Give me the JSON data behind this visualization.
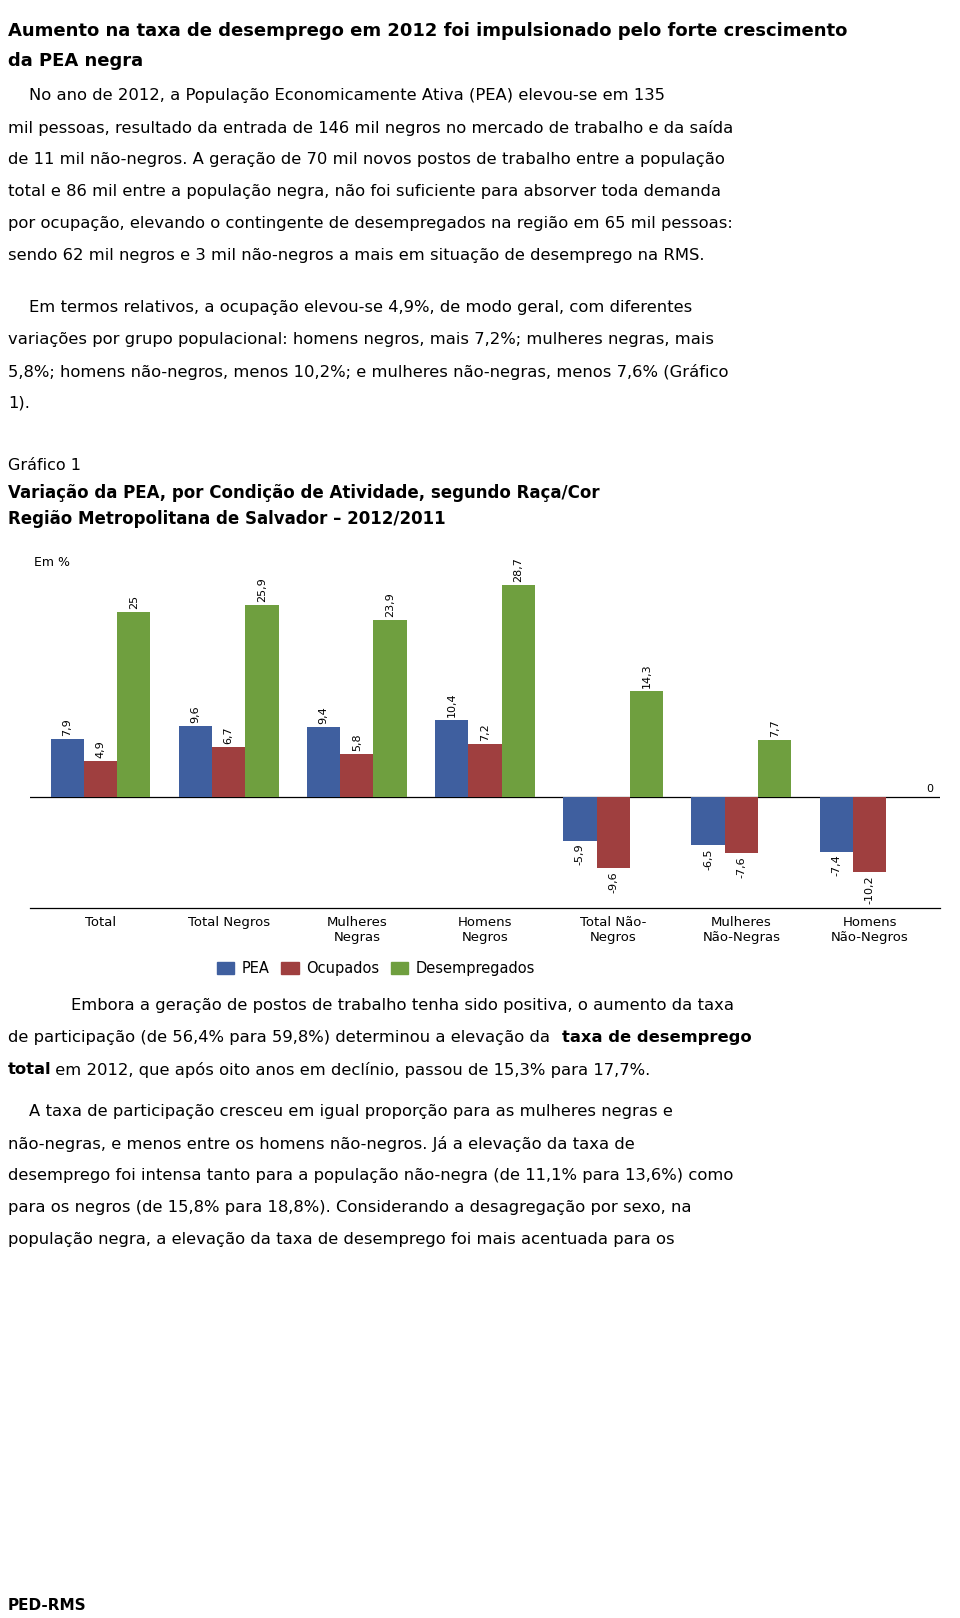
{
  "paragraph1": "No ano de 2012, a População Economicamente Ativa (PEA) elevou-se em 135 mil pessoas, resultado da entrada de 146 mil negros no mercado de trabalho e da saída de 11 mil não-negros. A geração de 70 mil novos postos de trabalho entre a população total e 86 mil entre a população negra, não foi suficiente para absorver toda demanda por ocupação, elevando o contingente de desempregados na região em 65 mil pessoas: sendo 62 mil negros e 3 mil não-negros a mais em situação de desemprego na RMS.",
  "paragraph2": "Em termos relativos, a ocupação elevou-se 4,9%, de modo geral, com diferentes variações por grupo populacional: homens negros, mais 7,2%; mulheres negras, mais 5,8%; homens não-negros, menos 10,2%; e mulheres não-negras, menos 7,6% (Gráfico 1).",
  "graph_label": "Gráfico 1",
  "graph_title_line1": "Variação da PEA, por Condição de Atividade, segundo Raça/Cor",
  "graph_title_line2": "Região Metropolitana de Salvador – 2012/2011",
  "em_percent": "Em %",
  "categories": [
    "Total",
    "Total Negros",
    "Mulheres\nNegras",
    "Homens\nNegros",
    "Total Não-\nNegros",
    "Mulheres\nNão-Negras",
    "Homens\nNão-Negros"
  ],
  "pea": [
    7.9,
    9.6,
    9.4,
    10.4,
    -5.9,
    -6.5,
    -7.4
  ],
  "ocupados": [
    4.9,
    6.7,
    5.8,
    7.2,
    -9.6,
    -7.6,
    -10.2
  ],
  "desempregados": [
    25.0,
    25.9,
    23.9,
    28.7,
    14.3,
    7.7,
    0.0
  ],
  "pea_color": "#3f5f9f",
  "ocupados_color": "#9f3f3f",
  "desempregados_color": "#6f9f3f",
  "legend_pea": "PEA",
  "legend_ocupados": "Ocupados",
  "legend_desempregados": "Desempregados",
  "paragraph4": "A taxa de participação cresceu em igual proporção para as mulheres negras e não-negras, e menos entre os homens não-negros. Já a elevação da taxa de desemprego foi intensa tanto para a população não-negra (de 11,1% para 13,6%) como para os negros (de 15,8% para 18,8%). Considerando a desagregação por sexo, na população negra, a elevação da taxa de desemprego foi mais acentuada para os",
  "footer": "PED-RMS",
  "background_color": "#ffffff",
  "fig_width": 9.6,
  "fig_height": 16.18,
  "dpi": 100
}
